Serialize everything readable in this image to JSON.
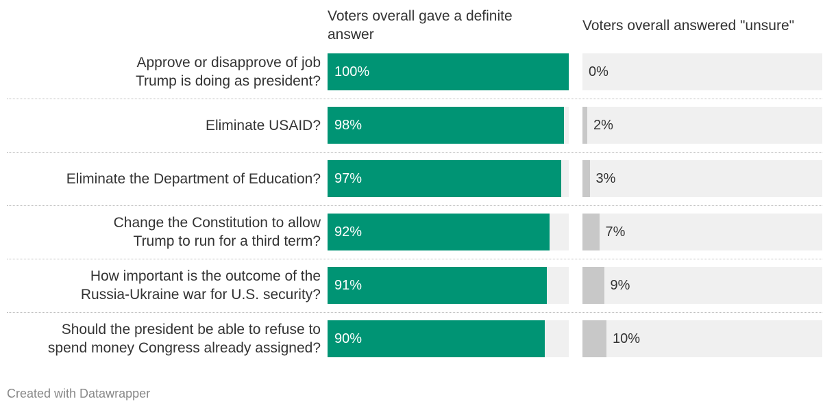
{
  "chart_data": {
    "type": "split-bar",
    "categories": [
      "Approve or disapprove of job Trump is doing as president?",
      "Eliminate USAID?",
      "Eliminate the Department of Education?",
      "Change the Constitution to allow Trump to run for a third term?",
      "How important is the outcome of the Russia-Ukraine war for U.S. security?",
      "Should the president be able to refuse to spend money Congress already assigned?"
    ],
    "xlim": [
      0,
      100
    ],
    "series": [
      {
        "name": "Voters overall gave a definite answer",
        "color": "#009474",
        "values": [
          100,
          98,
          97,
          92,
          91,
          90
        ],
        "value_labels": [
          "100%",
          "98%",
          "97%",
          "92%",
          "91%",
          "90%"
        ]
      },
      {
        "name": "Voters overall answered \"unsure\"",
        "color": "#c8c8c8",
        "values": [
          0,
          2,
          3,
          7,
          9,
          10
        ],
        "value_labels": [
          "0%",
          "2%",
          "3%",
          "7%",
          "9%",
          "10%"
        ]
      }
    ],
    "credit": "Created with Datawrapper"
  }
}
